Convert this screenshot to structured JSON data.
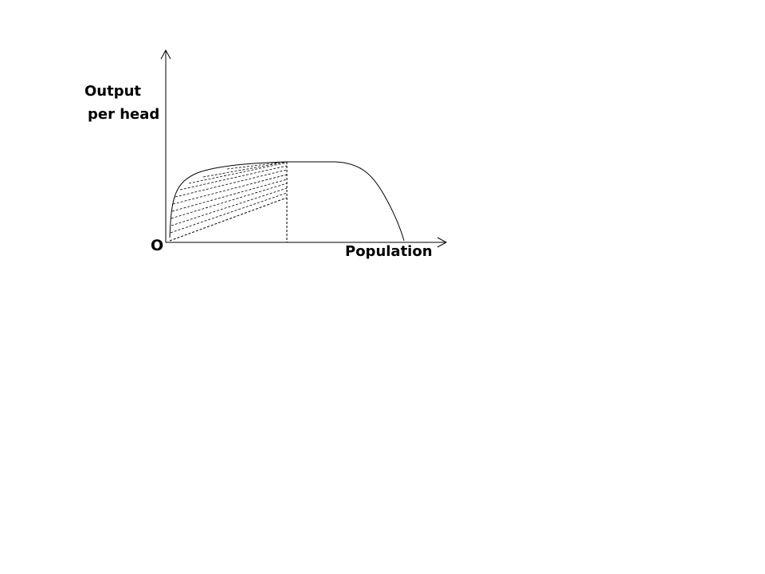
{
  "diagram": {
    "y_axis_label_line1": "Output",
    "y_axis_label_line2": "per head",
    "origin_label": "O",
    "x_axis_label": "Population",
    "line_color": "#000000",
    "background_color": "#ffffff"
  }
}
